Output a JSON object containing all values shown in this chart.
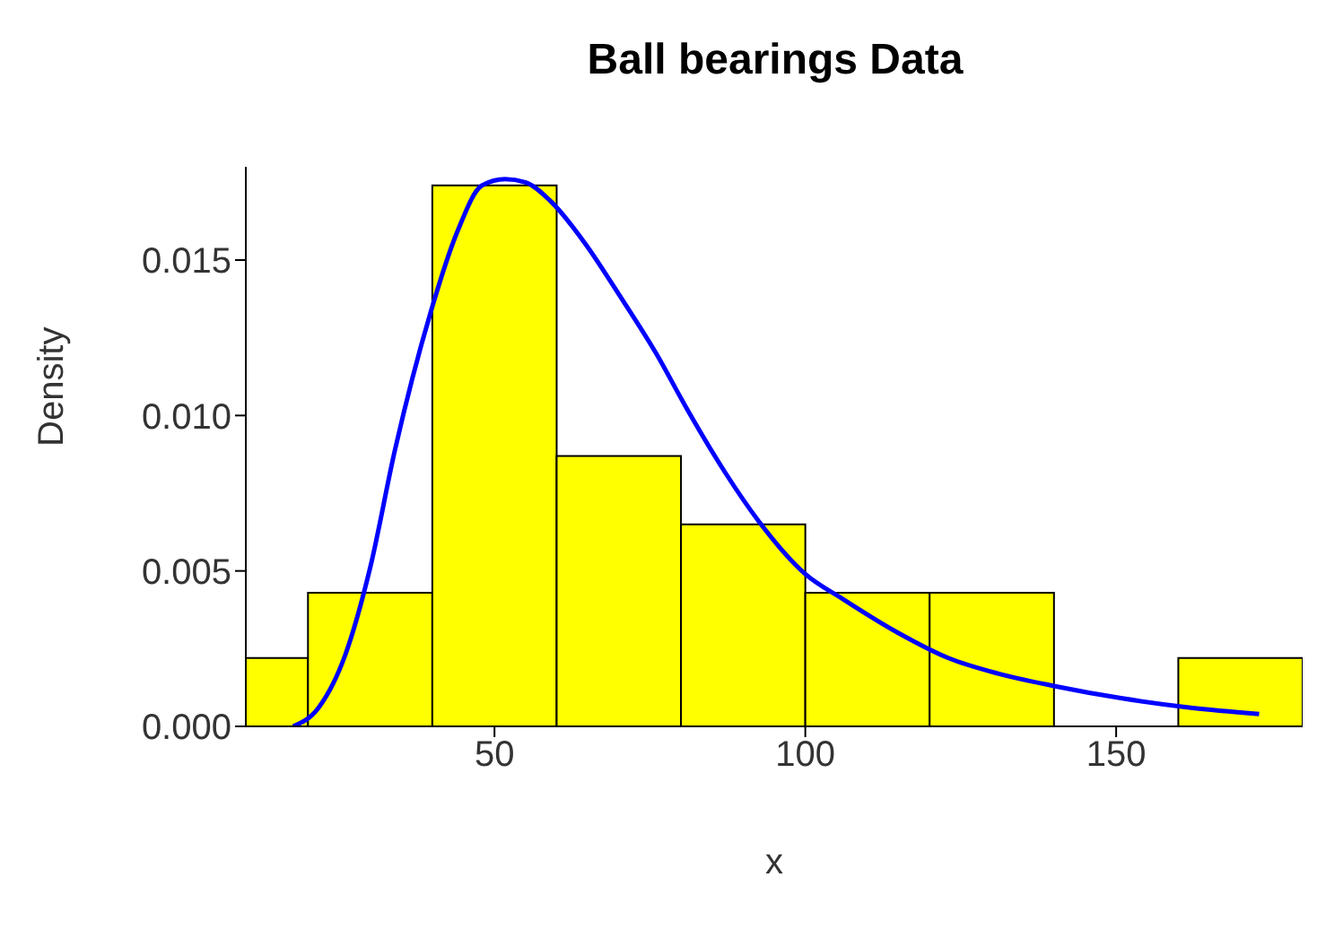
{
  "chart_data": {
    "type": "histogram",
    "title": "Ball bearings Data",
    "xlabel": "x",
    "ylabel": "Density",
    "bins": [
      10,
      20,
      40,
      60,
      80,
      100,
      120,
      140,
      160,
      180
    ],
    "values": [
      0.0022,
      0.0043,
      0.0174,
      0.0087,
      0.0065,
      0.0043,
      0.0043,
      0,
      0.0022
    ],
    "color": "#ffff00",
    "series": [
      {
        "type": "line",
        "color": "#0000ff",
        "marker": "none",
        "x": [
          17.6,
          21.7,
          26,
          30,
          34,
          39.7,
          44,
          48,
          51.7,
          55,
          59,
          64.7,
          70,
          76,
          81,
          87,
          92.5,
          100,
          106,
          115,
          123,
          131,
          140,
          151,
          162,
          173
        ],
        "values": [
          0,
          0.0006,
          0.0023,
          0.0051,
          0.0089,
          0.0133,
          0.0159,
          0.0174,
          0.0176,
          0.0175,
          0.0169,
          0.0155,
          0.0139,
          0.012,
          0.0102,
          0.0082,
          0.0066,
          0.0049,
          0.0041,
          0.003,
          0.0022,
          0.0017,
          0.0013,
          0.0009,
          0.0006,
          0.0004
        ]
      }
    ],
    "xlim": [
      10,
      180
    ],
    "xticks": [
      50,
      100,
      150
    ],
    "ylim": [
      0,
      0.018
    ],
    "yticks": [
      {
        "value": 0,
        "label": "0.000"
      },
      {
        "value": 0.005,
        "label": "0.005"
      },
      {
        "value": 0.01,
        "label": "0.010"
      },
      {
        "value": 0.015,
        "label": "0.015"
      }
    ]
  }
}
